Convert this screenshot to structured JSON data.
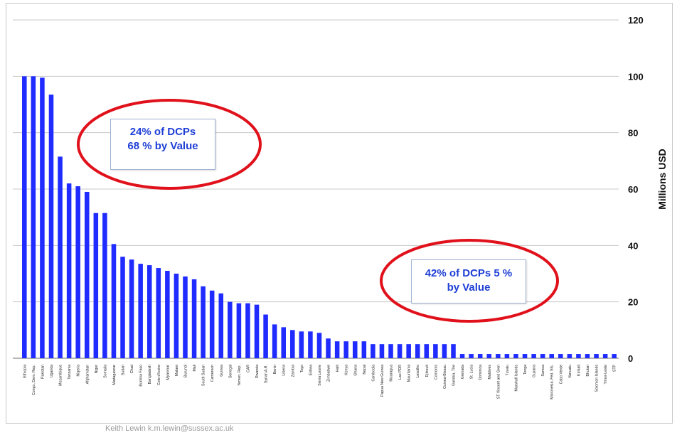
{
  "chart_data": {
    "type": "bar",
    "ylabel": "Millions USD",
    "ylim": [
      0,
      120
    ],
    "yticks": [
      "0",
      "20",
      "40",
      "60",
      "80",
      "100",
      "120"
    ],
    "y_axis_side": "right",
    "grid": true,
    "bar_color": "#1f2bff",
    "categories": [
      "Ethiopia",
      "Congo, Dem. Rep.",
      "Pakistan",
      "Uganda",
      "Mozambique",
      "Tanzania",
      "Nigeria",
      "Afghanistan",
      "Niger",
      "Somalia",
      "Madagascar",
      "Sudan",
      "Chad",
      "Burkina Faso",
      "Bangladesh",
      "Cote d'Ivoire",
      "Myanmar",
      "Malawi",
      "Burundi",
      "Mali",
      "South Sudan",
      "Cameroon",
      "Guinea",
      "Senegal",
      "Yemen, Rep.",
      "CAR",
      "Rwanda",
      "Syrian A.R.",
      "Benin",
      "Liberia",
      "Zambia",
      "Togo",
      "Eritrea",
      "Sierra Leone",
      "Zimbabwe",
      "Haiti",
      "Kenya",
      "Ghana",
      "Nepal",
      "Cambodia",
      "Papua New Guinea",
      "Nicaragua",
      "Lao PDR",
      "Mauritania",
      "Lesotho",
      "Djibouti",
      "Comoros",
      "Guinea-Bissau",
      "Gambia, The",
      "Grenada",
      "St. Lucia",
      "Dominica",
      "Maldives",
      "ST Vincent and Gren",
      "Tuvalu",
      "Marshall Islands",
      "Tonga",
      "Guyana",
      "Samoa",
      "Micronesia, Fed. Sts.",
      "Cabo Verde",
      "Vanuatu",
      "Kiribati",
      "Bhutan",
      "Solomon Islands",
      "Timor-Leste",
      "STP"
    ],
    "values": [
      100,
      100,
      99.5,
      93.5,
      71.5,
      62,
      61,
      59,
      51.5,
      51.5,
      40.5,
      36,
      35,
      33.5,
      33,
      32,
      31,
      30,
      29,
      28,
      25.5,
      24,
      23,
      20,
      19.5,
      19.5,
      19,
      15.5,
      12,
      11,
      10,
      9.5,
      9.5,
      9,
      7,
      6,
      6,
      6,
      6,
      5,
      5,
      5,
      5,
      5,
      5,
      5,
      5,
      5,
      5,
      1.5,
      1.5,
      1.5,
      1.5,
      1.5,
      1.5,
      1.5,
      1.5,
      1.5,
      1.5,
      1.5,
      1.5,
      1.5,
      1.5,
      1.5,
      1.5,
      1.5,
      1.5
    ],
    "annotations": [
      {
        "lines": [
          "24% of DCPs",
          "68 % by Value"
        ],
        "color": "#1f3fd6",
        "ellipse_color": "#e0111b"
      },
      {
        "lines": [
          "42% of DCPs 5 %",
          "by Value"
        ],
        "color": "#1f3fd6",
        "ellipse_color": "#e0111b"
      }
    ]
  },
  "footer": "Keith Lewin k.m.lewin@sussex.ac.uk"
}
